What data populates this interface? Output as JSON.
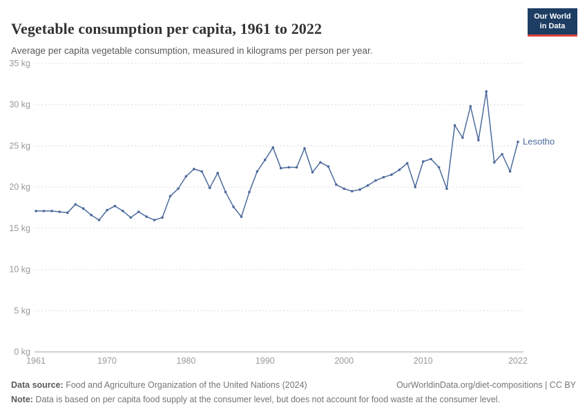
{
  "header": {
    "title": "Vegetable consumption per capita, 1961 to 2022",
    "subtitle": "Average per capita vegetable consumption, measured in kilograms per person per year.",
    "logo": {
      "line1": "Our World",
      "line2": "in Data"
    }
  },
  "chart_data": {
    "type": "line",
    "title": "Vegetable consumption per capita, 1961 to 2022",
    "xlabel": "",
    "ylabel": "",
    "xlim": [
      1961,
      2022
    ],
    "ylim": [
      0,
      35
    ],
    "x_ticks": [
      1961,
      1970,
      1980,
      1990,
      2000,
      2010,
      2022
    ],
    "y_ticks": [
      0,
      5,
      10,
      15,
      20,
      25,
      30,
      35
    ],
    "y_tick_suffix": " kg",
    "grid": "dashed-horizontal",
    "legend_position": "end-of-line-label",
    "series": [
      {
        "name": "Lesotho",
        "x": [
          1961,
          1962,
          1963,
          1964,
          1965,
          1966,
          1967,
          1968,
          1969,
          1970,
          1971,
          1972,
          1973,
          1974,
          1975,
          1976,
          1977,
          1978,
          1979,
          1980,
          1981,
          1982,
          1983,
          1984,
          1985,
          1986,
          1987,
          1988,
          1989,
          1990,
          1991,
          1992,
          1993,
          1994,
          1995,
          1996,
          1997,
          1998,
          1999,
          2000,
          2001,
          2002,
          2003,
          2004,
          2005,
          2006,
          2007,
          2008,
          2009,
          2010,
          2011,
          2012,
          2013,
          2014,
          2015,
          2016,
          2017,
          2018,
          2019,
          2020,
          2021,
          2022
        ],
        "values": [
          17.1,
          17.1,
          17.1,
          17.0,
          16.9,
          17.9,
          17.4,
          16.6,
          16.0,
          17.2,
          17.7,
          17.1,
          16.3,
          17.0,
          16.4,
          16.0,
          16.3,
          18.9,
          19.8,
          21.3,
          22.2,
          21.9,
          19.9,
          21.7,
          19.4,
          17.6,
          16.4,
          19.4,
          21.9,
          23.3,
          24.8,
          22.3,
          22.4,
          22.4,
          24.7,
          21.8,
          23.0,
          22.5,
          20.3,
          19.8,
          19.5,
          19.7,
          20.2,
          20.8,
          21.2,
          21.5,
          22.1,
          22.9,
          20.0,
          23.1,
          23.4,
          22.4,
          19.8,
          27.5,
          26.0,
          29.8,
          25.7,
          31.6,
          23.0,
          24.0,
          21.9,
          25.5
        ]
      }
    ]
  },
  "footer": {
    "source_label": "Data source:",
    "source_text": " Food and Agriculture Organization of the United Nations (2024)",
    "link_text": "OurWorldinData.org/diet-compositions | CC BY",
    "note_label": "Note:",
    "note_text": " Data is based on per capita food supply at the consumer level, but does not account for food waste at the consumer level."
  },
  "colors": {
    "line": "#4C6A9C",
    "grid": "#dddddd",
    "zero_line": "#a1a1a1",
    "axis_text": "#999999",
    "logo_bg": "#1d3d63",
    "logo_accent": "#e0403f"
  }
}
